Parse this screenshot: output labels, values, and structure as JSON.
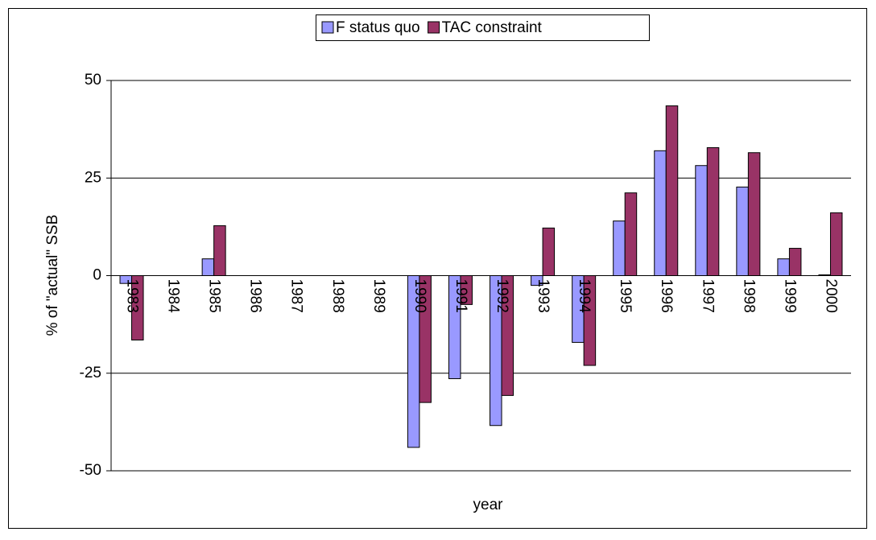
{
  "chart_data": {
    "type": "bar",
    "x_label": "year",
    "y_label": "% of \"actual\" SSB",
    "categories": [
      "1983",
      "1984",
      "1985",
      "1986",
      "1987",
      "1988",
      "1989",
      "1990",
      "1991",
      "1992",
      "1993",
      "1994",
      "1995",
      "1996",
      "1997",
      "1998",
      "1999",
      "2000"
    ],
    "series": [
      {
        "name": "F status quo",
        "color": "#9999ff",
        "values": [
          -2,
          null,
          4.3,
          null,
          null,
          null,
          null,
          -44,
          -26.4,
          -38.4,
          -2.5,
          -17.1,
          14,
          32,
          28.2,
          22.7,
          4.3,
          0.2
        ]
      },
      {
        "name": "TAC constraint",
        "color": "#993366",
        "values": [
          -16.5,
          null,
          12.8,
          null,
          null,
          null,
          null,
          -32.5,
          -7.4,
          -30.7,
          12.2,
          -23,
          21.2,
          43.5,
          32.8,
          31.5,
          7,
          16.1
        ]
      }
    ],
    "ylim": [
      -50,
      50
    ],
    "yticks": [
      -50,
      -25,
      0,
      25,
      50
    ],
    "grid": true,
    "legend": "top"
  }
}
